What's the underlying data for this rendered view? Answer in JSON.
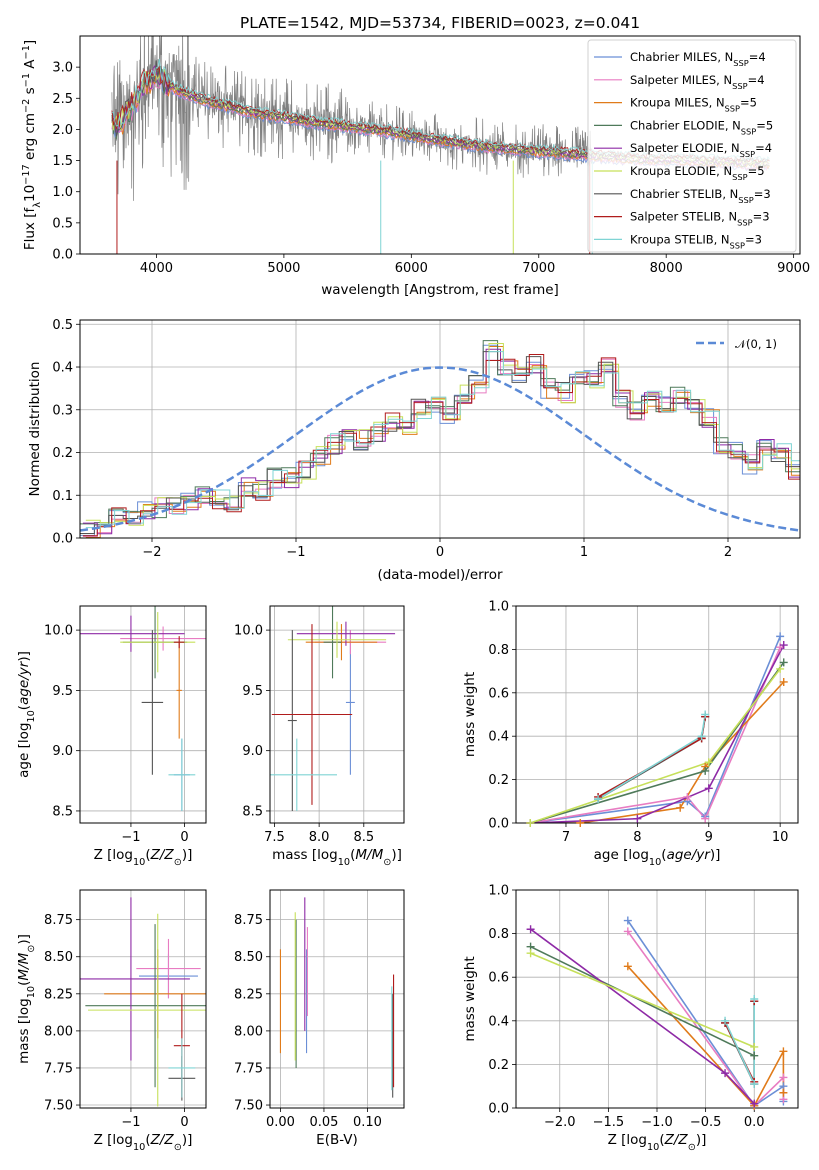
{
  "colors": {
    "Chabrier MILES": "#6b8fd6",
    "Salpeter MILES": "#e87cc2",
    "Kroupa MILES": "#e07b1a",
    "Chabrier ELODIE": "#4f7a5a",
    "Salpeter ELODIE": "#8e2aa6",
    "Kroupa ELODIE": "#c6e05a",
    "Chabrier STELIB": "#555555",
    "Salpeter STELIB": "#b01c1c",
    "Kroupa STELIB": "#7fd4d4",
    "data": "#808080",
    "gauss": "#5b8ad6"
  },
  "chart_data": [
    {
      "id": "spectrum",
      "type": "line",
      "title": "PLATE=1542, MJD=53734, FIBERID=0023, z=0.041",
      "xlabel": "wavelength [Angstrom, rest frame]",
      "ylabel": "Flux [f_λ10^-17 erg cm^-2 s^-1 A^-1]",
      "xlim": [
        3400,
        9050
      ],
      "ylim": [
        0,
        3.5
      ],
      "xticks": [
        "4000",
        "5000",
        "6000",
        "7000",
        "8000",
        "9000"
      ],
      "yticks": [
        "0.0",
        "0.5",
        "1.0",
        "1.5",
        "2.0",
        "2.5",
        "3.0"
      ],
      "grid": false,
      "legend_position": "upper right",
      "legend": [
        {
          "name": "Chabrier MILES",
          "nssp": "4"
        },
        {
          "name": "Salpeter MILES",
          "nssp": "4"
        },
        {
          "name": "Kroupa MILES",
          "nssp": "5"
        },
        {
          "name": "Chabrier ELODIE",
          "nssp": "5"
        },
        {
          "name": "Salpeter ELODIE",
          "nssp": "4"
        },
        {
          "name": "Kroupa ELODIE",
          "nssp": "5"
        },
        {
          "name": "Chabrier STELIB",
          "nssp": "3"
        },
        {
          "name": "Salpeter STELIB",
          "nssp": "3"
        },
        {
          "name": "Kroupa STELIB",
          "nssp": "3"
        }
      ],
      "model_continuum": {
        "x": [
          3650,
          3700,
          3800,
          3900,
          4000,
          4100,
          4200,
          4400,
          4600,
          4800,
          5000,
          5200,
          5500,
          5800,
          6000,
          6300,
          6600,
          7000,
          7400,
          7800,
          8200,
          8600,
          8820
        ],
        "y": [
          2.1,
          2.05,
          2.35,
          2.7,
          2.9,
          2.7,
          2.6,
          2.45,
          2.35,
          2.25,
          2.2,
          2.12,
          2.05,
          1.97,
          1.9,
          1.8,
          1.72,
          1.65,
          1.58,
          1.52,
          1.5,
          1.46,
          1.45
        ]
      },
      "data_range": [
        3650,
        7420
      ]
    },
    {
      "id": "residuals",
      "type": "line",
      "xlabel": "(data-model)/error",
      "ylabel": "Normed distribution",
      "xlim": [
        -2.5,
        2.5
      ],
      "ylim": [
        0,
        0.51
      ],
      "xticks": [
        "−2",
        "−1",
        "0",
        "1",
        "2"
      ],
      "yticks": [
        "0.0",
        "0.1",
        "0.2",
        "0.3",
        "0.4",
        "0.5"
      ],
      "grid": true,
      "legend_position": "upper right",
      "legend_label": "𝒩(0, 1)",
      "bin_width": 0.1,
      "hist_base": [
        0.02,
        0.03,
        0.05,
        0.05,
        0.06,
        0.07,
        0.08,
        0.09,
        0.1,
        0.09,
        0.08,
        0.12,
        0.11,
        0.14,
        0.14,
        0.16,
        0.19,
        0.22,
        0.24,
        0.23,
        0.25,
        0.27,
        0.26,
        0.3,
        0.31,
        0.29,
        0.34,
        0.36,
        0.44,
        0.4,
        0.38,
        0.41,
        0.35,
        0.34,
        0.38,
        0.37,
        0.4,
        0.33,
        0.3,
        0.32,
        0.31,
        0.33,
        0.3,
        0.28,
        0.22,
        0.2,
        0.17,
        0.21,
        0.2,
        0.16,
        0.14,
        0.12,
        0.1,
        0.09,
        0.08,
        0.07,
        0.06,
        0.05,
        0.04,
        0.04,
        0.05,
        0.03,
        0.03,
        0.02,
        0.02,
        0.02
      ]
    },
    {
      "id": "age_vs_Z",
      "type": "scatter",
      "xlabel": "Z [log10(Z/Z⊙)]",
      "ylabel": "age [log10(age/yr)]",
      "xlim": [
        -1.95,
        0.4
      ],
      "ylim": [
        8.4,
        10.2
      ],
      "xticks": [
        "−1",
        "0"
      ],
      "yticks": [
        "8.5",
        "9.0",
        "9.5",
        "10.0"
      ],
      "grid": true,
      "points": [
        {
          "series": "Chabrier MILES",
          "x": -0.05,
          "xerr": 0.15,
          "y": 8.8,
          "yerr": 0.3
        },
        {
          "series": "Salpeter MILES",
          "x": -0.4,
          "xerr": 0.8,
          "y": 9.93,
          "yerr": 0.1
        },
        {
          "series": "Kroupa MILES",
          "x": -0.1,
          "xerr": 0.05,
          "y": 9.5,
          "yerr": 0.4
        },
        {
          "series": "Chabrier ELODIE",
          "x": -0.55,
          "xerr": 0.6,
          "y": 9.9,
          "yerr": 0.3
        },
        {
          "series": "Salpeter ELODIE",
          "x": -1.0,
          "xerr": 1.0,
          "y": 9.97,
          "yerr": 0.15
        },
        {
          "series": "Kroupa ELODIE",
          "x": -0.5,
          "xerr": 0.7,
          "y": 9.9,
          "yerr": 0.25
        },
        {
          "series": "Chabrier STELIB",
          "x": -0.6,
          "xerr": 0.2,
          "y": 9.4,
          "yerr": 0.6
        },
        {
          "series": "Salpeter STELIB",
          "x": -0.1,
          "xerr": 0.1,
          "y": 9.9,
          "yerr": 0.05
        },
        {
          "series": "Kroupa STELIB",
          "x": -0.05,
          "xerr": 0.25,
          "y": 8.8,
          "yerr": 0.3
        }
      ]
    },
    {
      "id": "age_vs_mass",
      "type": "scatter",
      "xlabel": "mass [log10(M/M⊙)]",
      "ylabel": "",
      "xlim": [
        7.45,
        8.95
      ],
      "ylim": [
        8.4,
        10.2
      ],
      "xticks": [
        "7.5",
        "8.0",
        "8.5"
      ],
      "yticks": [
        "8.5",
        "9.0",
        "9.5",
        "10.0"
      ],
      "grid": true,
      "points": [
        {
          "series": "Chabrier MILES",
          "x": 8.35,
          "xerr": 0.05,
          "y": 9.4,
          "yerr": 0.6
        },
        {
          "series": "Salpeter MILES",
          "x": 8.35,
          "xerr": 0.4,
          "y": 9.9,
          "yerr": 0.1
        },
        {
          "series": "Kroupa MILES",
          "x": 8.25,
          "xerr": 0.4,
          "y": 9.9,
          "yerr": 0.15
        },
        {
          "series": "Chabrier ELODIE",
          "x": 8.15,
          "xerr": 0.1,
          "y": 9.9,
          "yerr": 0.3
        },
        {
          "series": "Salpeter ELODIE",
          "x": 8.3,
          "xerr": 0.55,
          "y": 9.97,
          "yerr": 0.1
        },
        {
          "series": "Kroupa ELODIE",
          "x": 8.2,
          "xerr": 0.55,
          "y": 9.92,
          "yerr": 0.15
        },
        {
          "series": "Chabrier STELIB",
          "x": 7.7,
          "xerr": 0.05,
          "y": 9.25,
          "yerr": 0.75
        },
        {
          "series": "Salpeter STELIB",
          "x": 7.92,
          "xerr": 0.45,
          "y": 9.3,
          "yerr": 0.75
        },
        {
          "series": "Kroupa STELIB",
          "x": 7.75,
          "xerr": 0.45,
          "y": 8.8,
          "yerr": 0.3
        }
      ]
    },
    {
      "id": "weight_vs_age",
      "type": "line",
      "xlabel": "age [log10(age/yr)]",
      "ylabel": "mass weight",
      "xlim": [
        6.3,
        10.25
      ],
      "ylim": [
        0,
        1.0
      ],
      "xticks": [
        "7",
        "8",
        "9",
        "10"
      ],
      "yticks": [
        "0.0",
        "0.2",
        "0.4",
        "0.6",
        "0.8",
        "1.0"
      ],
      "grid": true,
      "series": [
        {
          "name": "Chabrier MILES",
          "x": [
            6.5,
            8.7,
            8.95,
            10.0
          ],
          "y": [
            0.0,
            0.1,
            0.03,
            0.86
          ]
        },
        {
          "name": "Salpeter MILES",
          "x": [
            6.5,
            8.7,
            8.95,
            10.0
          ],
          "y": [
            0.0,
            0.12,
            0.02,
            0.81
          ]
        },
        {
          "name": "Kroupa MILES",
          "x": [
            6.5,
            7.2,
            8.6,
            8.95,
            10.05
          ],
          "y": [
            0.0,
            0.0,
            0.07,
            0.26,
            0.65
          ]
        },
        {
          "name": "Chabrier ELODIE",
          "x": [
            6.5,
            8.95,
            10.05
          ],
          "y": [
            0.0,
            0.24,
            0.74
          ]
        },
        {
          "name": "Salpeter ELODIE",
          "x": [
            6.5,
            8.0,
            9.0,
            10.05
          ],
          "y": [
            0.0,
            0.02,
            0.16,
            0.82
          ]
        },
        {
          "name": "Kroupa ELODIE",
          "x": [
            6.5,
            9.0,
            10.0
          ],
          "y": [
            0.0,
            0.28,
            0.71
          ]
        },
        {
          "name": "Chabrier STELIB",
          "x": [
            7.45,
            8.9,
            8.95
          ],
          "y": [
            0.11,
            0.39,
            0.49
          ]
        },
        {
          "name": "Salpeter STELIB",
          "x": [
            7.45,
            8.9,
            8.95
          ],
          "y": [
            0.12,
            0.39,
            0.49
          ]
        },
        {
          "name": "Kroupa STELIB",
          "x": [
            7.45,
            8.9,
            8.95
          ],
          "y": [
            0.11,
            0.4,
            0.5
          ]
        }
      ]
    },
    {
      "id": "mass_vs_Z",
      "type": "scatter",
      "xlabel": "Z [log10(Z/Z⊙)]",
      "ylabel": "mass [log10(M/M⊙)]",
      "xlim": [
        -1.95,
        0.4
      ],
      "ylim": [
        7.48,
        8.95
      ],
      "xticks": [
        "−1",
        "0"
      ],
      "yticks": [
        "7.50",
        "7.75",
        "8.00",
        "8.25",
        "8.50",
        "8.75"
      ],
      "grid": true,
      "points": [
        {
          "series": "Chabrier MILES",
          "x": -0.3,
          "xerr": 0.55,
          "y": 8.37,
          "yerr": 0.15
        },
        {
          "series": "Salpeter MILES",
          "x": -0.3,
          "xerr": 0.6,
          "y": 8.42,
          "yerr": 0.2
        },
        {
          "series": "Kroupa MILES",
          "x": -0.5,
          "xerr": 1.0,
          "y": 8.25,
          "yerr": 0.3
        },
        {
          "series": "Chabrier ELODIE",
          "x": -0.55,
          "xerr": 1.3,
          "y": 8.17,
          "yerr": 0.55
        },
        {
          "series": "Salpeter ELODIE",
          "x": -1.0,
          "xerr": 1.1,
          "y": 8.35,
          "yerr": 0.55
        },
        {
          "series": "Kroupa ELODIE",
          "x": -0.5,
          "xerr": 1.3,
          "y": 8.14,
          "yerr": 0.65
        },
        {
          "series": "Chabrier STELIB",
          "x": -0.05,
          "xerr": 0.25,
          "y": 7.68,
          "yerr": 0.15
        },
        {
          "series": "Salpeter STELIB",
          "x": -0.05,
          "xerr": 0.15,
          "y": 7.9,
          "yerr": 0.35
        },
        {
          "series": "Kroupa STELIB",
          "x": -0.05,
          "xerr": 0.25,
          "y": 7.75,
          "yerr": 0.2
        }
      ]
    },
    {
      "id": "mass_vs_ebv",
      "type": "scatter",
      "xlabel": "E(B-V)",
      "ylabel": "",
      "xlim": [
        -0.012,
        0.142
      ],
      "ylim": [
        7.48,
        8.95
      ],
      "xticks": [
        "0.00",
        "0.05",
        "0.10"
      ],
      "yticks": [
        "7.50",
        "7.75",
        "8.00",
        "8.25",
        "8.50",
        "8.75"
      ],
      "grid": true,
      "points": [
        {
          "series": "Chabrier MILES",
          "x": 0.03,
          "y": 8.2,
          "yerr": 0.35
        },
        {
          "series": "Salpeter MILES",
          "x": 0.031,
          "y": 8.4,
          "yerr": 0.3
        },
        {
          "series": "Kroupa MILES",
          "x": 0.0,
          "y": 8.2,
          "yerr": 0.35
        },
        {
          "series": "Chabrier ELODIE",
          "x": 0.018,
          "y": 8.25,
          "yerr": 0.5
        },
        {
          "series": "Salpeter ELODIE",
          "x": 0.028,
          "y": 8.45,
          "yerr": 0.45
        },
        {
          "series": "Kroupa ELODIE",
          "x": 0.017,
          "y": 8.3,
          "yerr": 0.5
        },
        {
          "series": "Chabrier STELIB",
          "x": 0.129,
          "y": 7.9,
          "yerr": 0.35
        },
        {
          "series": "Salpeter STELIB",
          "x": 0.13,
          "y": 8.0,
          "yerr": 0.38
        },
        {
          "series": "Kroupa STELIB",
          "x": 0.128,
          "y": 7.95,
          "yerr": 0.35
        }
      ]
    },
    {
      "id": "weight_vs_Z",
      "type": "line",
      "xlabel": "Z [log10(Z/Z⊙)]",
      "ylabel": "mass weight",
      "xlim": [
        -2.45,
        0.45
      ],
      "ylim": [
        0,
        1.0
      ],
      "xticks": [
        "−2.0",
        "−1.5",
        "−1.0",
        "−0.5",
        "0.0"
      ],
      "yticks": [
        "0.0",
        "0.2",
        "0.4",
        "0.6",
        "0.8",
        "1.0"
      ],
      "grid": true,
      "series": [
        {
          "name": "Chabrier MILES",
          "x": [
            -1.3,
            0.0,
            0.3,
            0.3
          ],
          "y": [
            0.86,
            0.01,
            0.1,
            0.03
          ]
        },
        {
          "name": "Salpeter MILES",
          "x": [
            -1.3,
            0.0,
            0.3,
            0.3
          ],
          "y": [
            0.81,
            0.01,
            0.14,
            0.04
          ]
        },
        {
          "name": "Kroupa MILES",
          "x": [
            -1.3,
            0.0,
            0.3,
            0.3
          ],
          "y": [
            0.65,
            0.01,
            0.26,
            0.07
          ]
        },
        {
          "name": "Chabrier ELODIE",
          "x": [
            -2.3,
            0.0
          ],
          "y": [
            0.74,
            0.24
          ]
        },
        {
          "name": "Salpeter ELODIE",
          "x": [
            -2.3,
            -0.3,
            0.0
          ],
          "y": [
            0.82,
            0.16,
            0.02
          ]
        },
        {
          "name": "Kroupa ELODIE",
          "x": [
            -2.3,
            0.0
          ],
          "y": [
            0.71,
            0.28
          ]
        },
        {
          "name": "Chabrier STELIB",
          "x": [
            -0.3,
            0.0,
            0.0
          ],
          "y": [
            0.39,
            0.11,
            0.49
          ]
        },
        {
          "name": "Salpeter STELIB",
          "x": [
            -0.3,
            0.0,
            0.0
          ],
          "y": [
            0.39,
            0.12,
            0.49
          ]
        },
        {
          "name": "Kroupa STELIB",
          "x": [
            -0.3,
            0.0,
            0.0
          ],
          "y": [
            0.4,
            0.11,
            0.5
          ]
        }
      ]
    }
  ]
}
